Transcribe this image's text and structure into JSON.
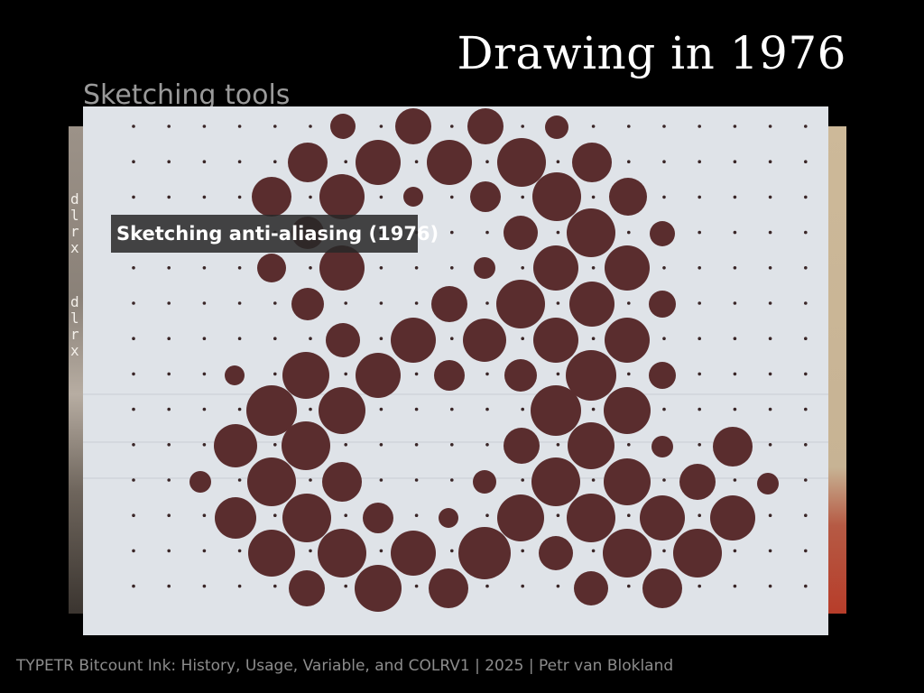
{
  "slide": {
    "title": "Drawing in 1976",
    "background_heading": "Sketching tools",
    "footer": "TYPETR Bitcount Ink: History, Usage, Variable, and COLRV1 | 2025 | Petr van Blokland"
  },
  "photo": {
    "caption": "Sketching anti-aliasing (1976)",
    "left_fragments": [
      "d\nl\nr\nx",
      "d\nl\nr\nx"
    ],
    "colors": {
      "slide_bg": "#000000",
      "paper": "#dfe3e8",
      "ink": "#5a2d2e",
      "grid_dot": "#3a2627"
    }
  }
}
